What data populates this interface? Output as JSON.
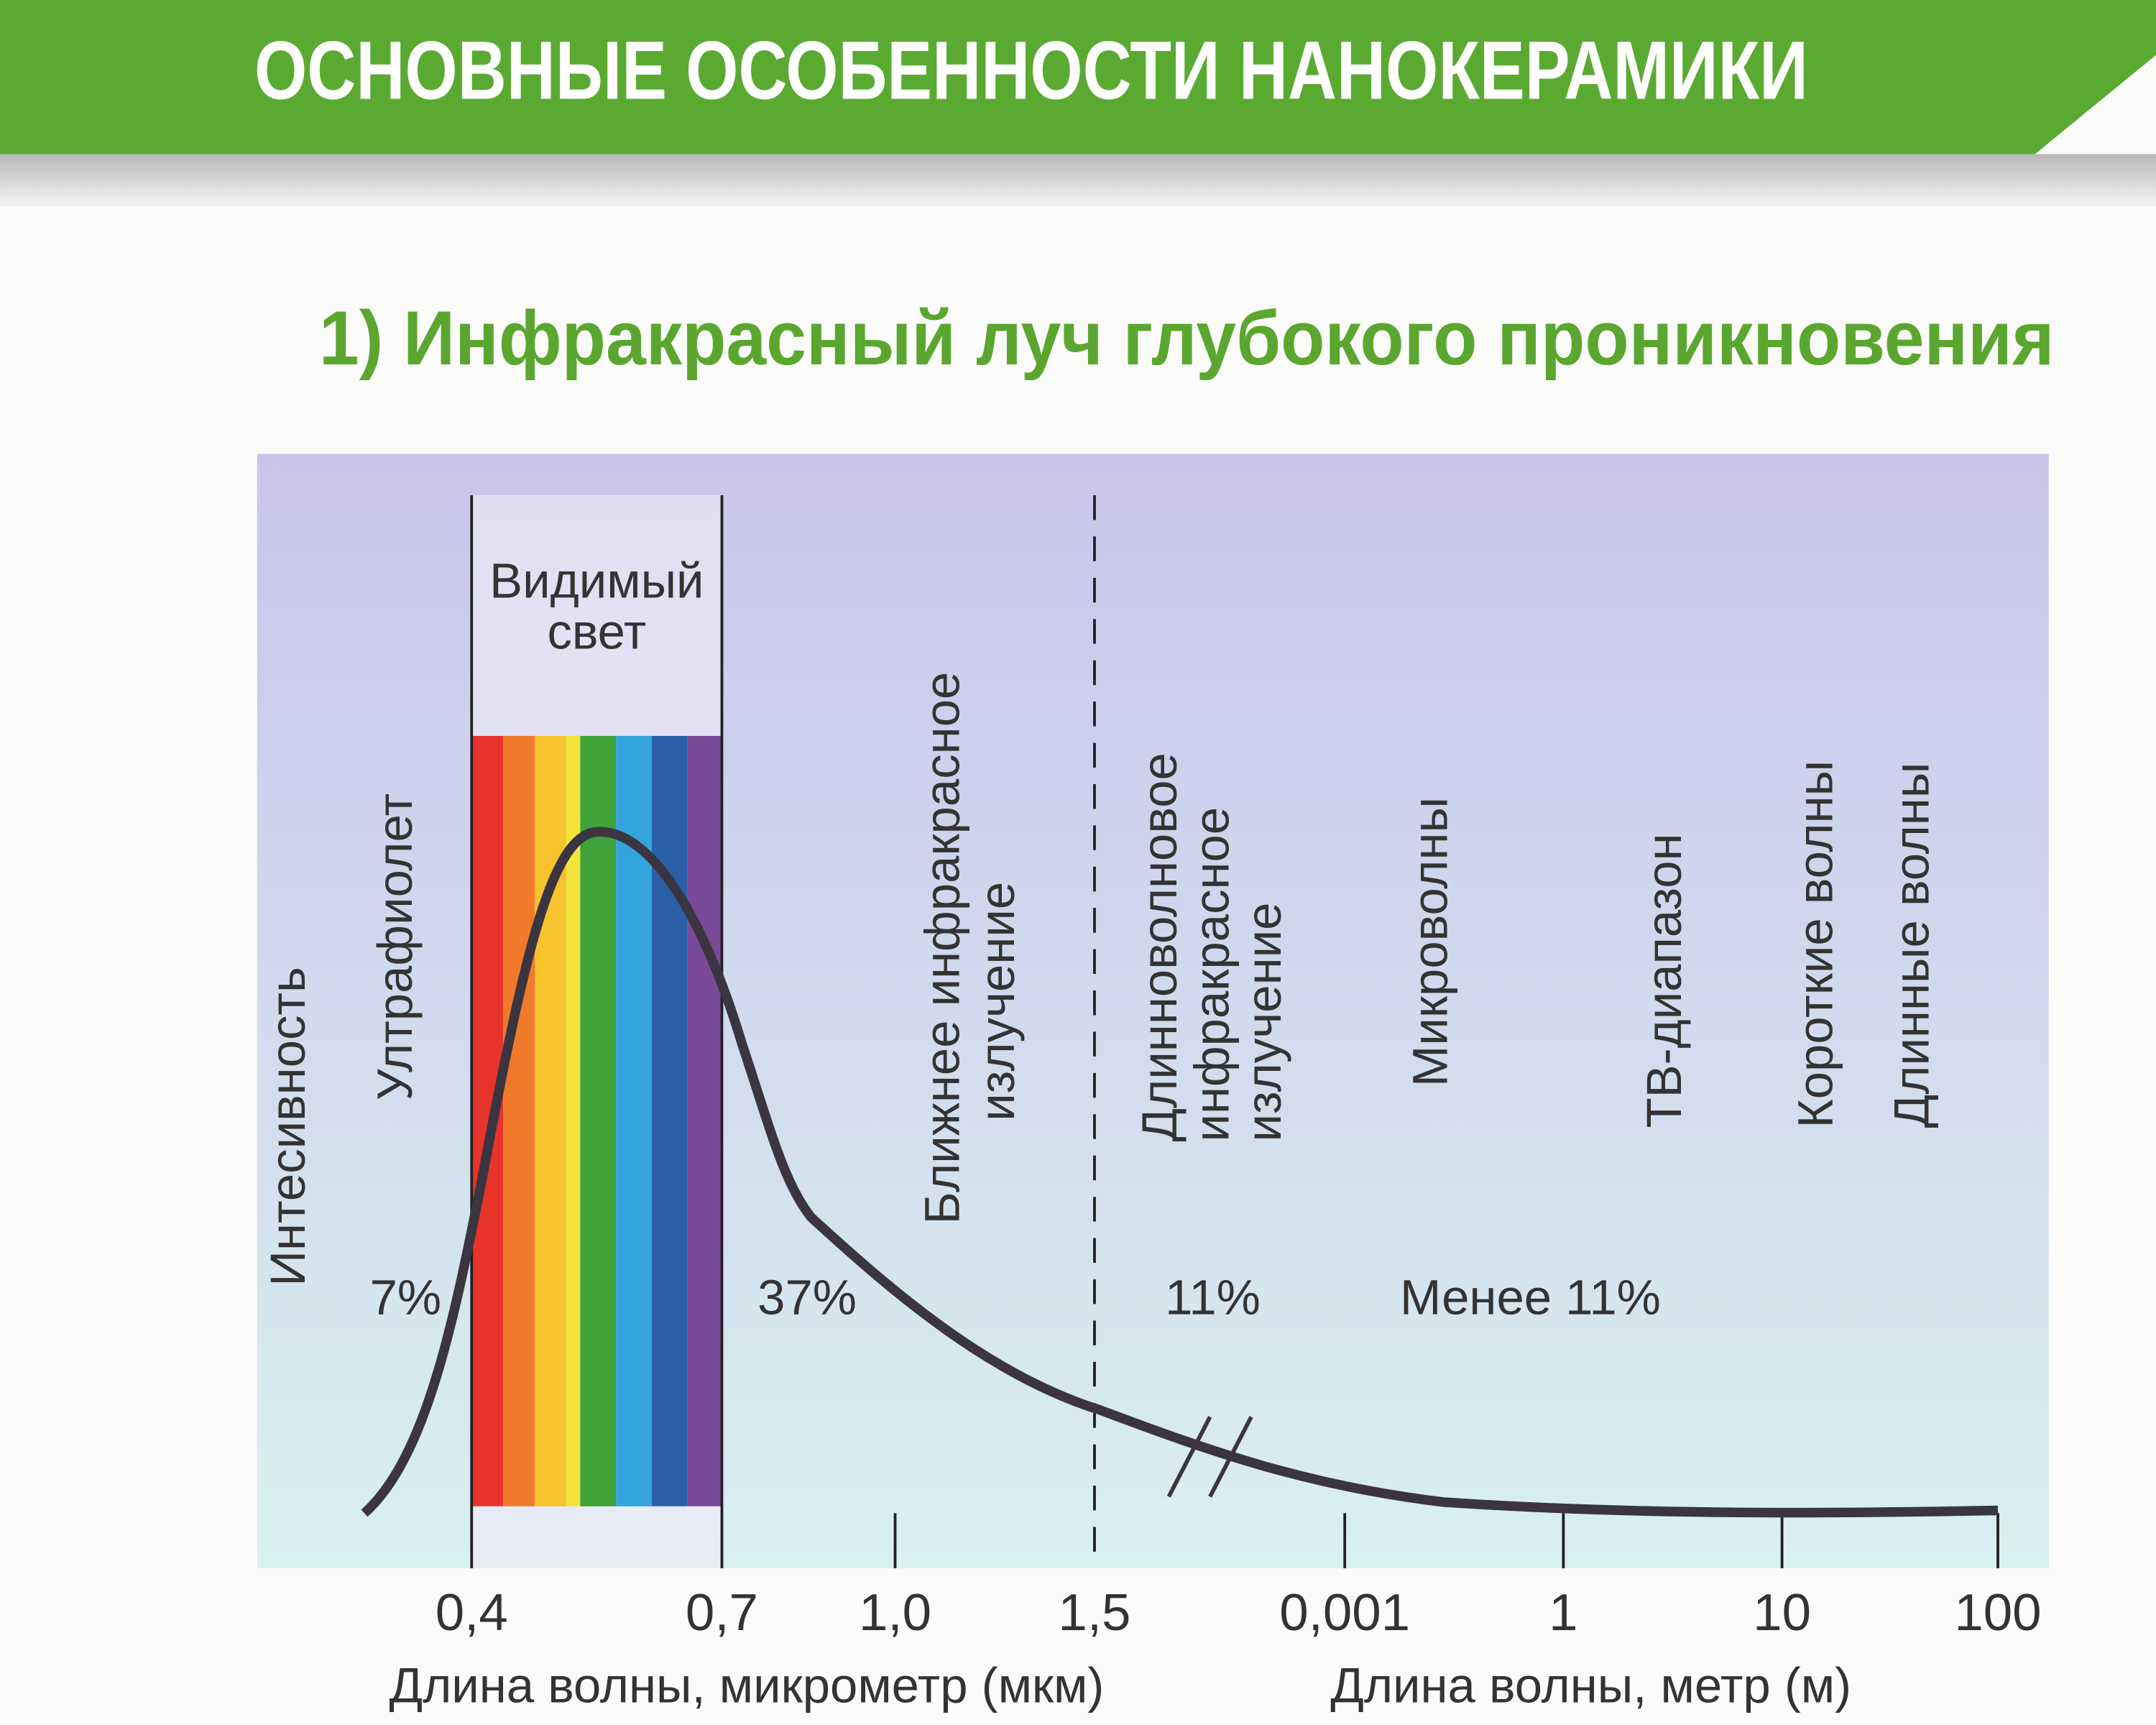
{
  "header": {
    "title": "ОСНОВНЫЕ ОСОБЕННОСТИ НАНОКЕРАМИКИ"
  },
  "section": {
    "title": "1) Инфракрасный луч глубокого проникновения"
  },
  "diagram": {
    "y_axis_label": "Интесивность",
    "regions": [
      {
        "lines": [
          "Ултрафиолет"
        ],
        "share": "7%"
      },
      {
        "lines": [
          "Видимый",
          "свет"
        ]
      },
      {
        "lines": [
          "Ближнее инфракрасное",
          "излучение"
        ],
        "share": "37%"
      },
      {
        "lines": [
          "Длинноволновое",
          "инфракрасное",
          "излучение"
        ],
        "share": "11%"
      },
      {
        "lines": [
          "Микроволны"
        ],
        "share": "Менее 11%"
      },
      {
        "lines": [
          "ТВ-диапазон"
        ]
      },
      {
        "lines": [
          "Короткие волны"
        ]
      },
      {
        "lines": [
          "Длинные волны"
        ]
      }
    ],
    "x_axis_micrometer": {
      "ticks": [
        "0,4",
        "0,7",
        "1,0",
        "1,5"
      ],
      "title": "Длина волны, микрометр (мкм)"
    },
    "x_axis_meter": {
      "ticks": [
        "0,001",
        "1",
        "10",
        "100"
      ],
      "title": "Длина волны, метр (м)"
    }
  }
}
